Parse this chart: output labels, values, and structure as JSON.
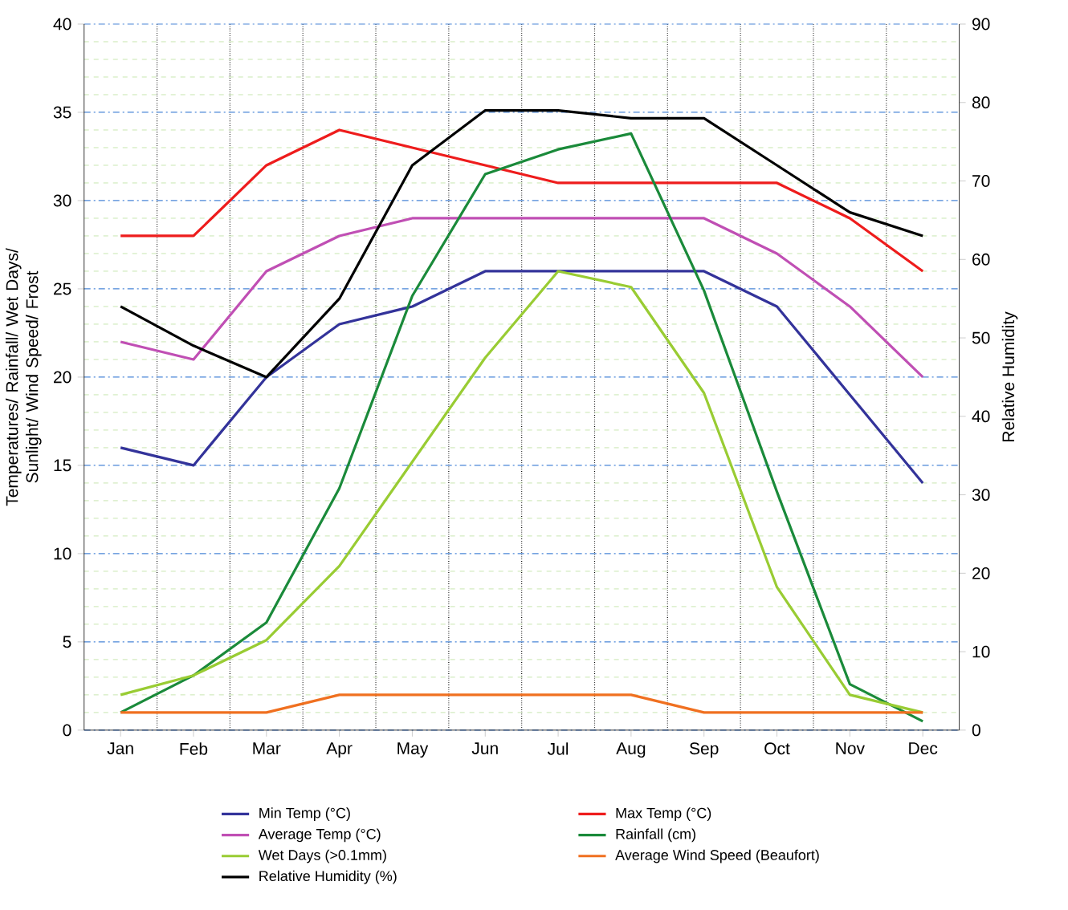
{
  "chart_data": {
    "type": "line",
    "ylabel": "Temperatures/ Rainfall/ Wet Days/ Sunlight/ Wind Speed/ Frost",
    "y2label": "Relative Humidity",
    "categories": [
      "Jan",
      "Feb",
      "Mar",
      "Apr",
      "May",
      "Jun",
      "Jul",
      "Aug",
      "Sep",
      "Oct",
      "Nov",
      "Dec"
    ],
    "series": [
      {
        "name": "Min Temp (°C)",
        "color": "#33339a",
        "values": [
          16,
          15,
          20,
          23,
          24,
          26,
          26,
          26,
          26,
          24,
          19,
          14
        ]
      },
      {
        "name": "Max Temp (°C)",
        "color": "#ee1c1c",
        "values": [
          28,
          28,
          32,
          34,
          33,
          32,
          31,
          31,
          31,
          31,
          29,
          26
        ]
      },
      {
        "name": "Average Temp (°C)",
        "color": "#c04fb4",
        "values": [
          22,
          21,
          26,
          28,
          29,
          29,
          29,
          29,
          29,
          27,
          24,
          20
        ]
      },
      {
        "name": "Rainfall (cm)",
        "color": "#1a8a3a",
        "values": [
          1,
          3.1,
          6.1,
          13.7,
          24.6,
          31.5,
          32.9,
          33.8,
          24.9,
          13.5,
          2.6,
          0.5
        ]
      },
      {
        "name": "Wet Days (>0.1mm)",
        "color": "#99cc33",
        "values": [
          2,
          3.1,
          5.1,
          9.3,
          15.2,
          21.1,
          26,
          25.1,
          19.1,
          8.1,
          2,
          1
        ]
      },
      {
        "name": "Average Wind Speed (Beaufort)",
        "color": "#f07020",
        "values": [
          1,
          1,
          1,
          2,
          2,
          2,
          2,
          2,
          1,
          1,
          1,
          1
        ]
      },
      {
        "name": "Relative Humidity (%)",
        "color": "#000000",
        "axis": "y2",
        "values": [
          54,
          49,
          45,
          55,
          72,
          79,
          79,
          78,
          78,
          72,
          66,
          63
        ]
      }
    ],
    "ylim": [
      0,
      40
    ],
    "yticks": [
      0,
      5,
      10,
      15,
      20,
      25,
      30,
      35,
      40
    ],
    "y2lim": [
      0,
      90
    ],
    "y2ticks": [
      0,
      10,
      20,
      30,
      40,
      50,
      60,
      70,
      80,
      90
    ],
    "grid": true,
    "legend": "bottom",
    "marker": "none",
    "line_style": "solid"
  }
}
